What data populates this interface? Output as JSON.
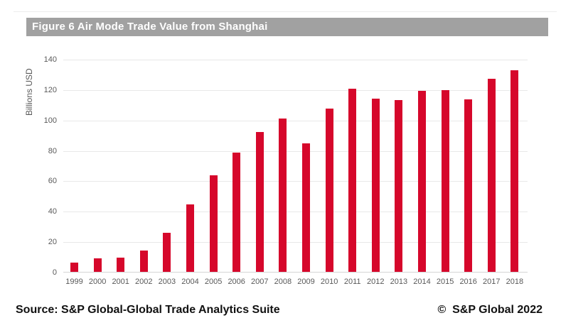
{
  "figure": {
    "title": "Figure 6 Air Mode Trade Value from Shanghai"
  },
  "chart_data": {
    "type": "bar",
    "title": "Figure 6 Air Mode Trade Value from Shanghai",
    "categories": [
      "1999",
      "2000",
      "2001",
      "2002",
      "2003",
      "2004",
      "2005",
      "2006",
      "2007",
      "2008",
      "2009",
      "2010",
      "2011",
      "2012",
      "2013",
      "2014",
      "2015",
      "2016",
      "2017",
      "2018"
    ],
    "values": [
      6.5,
      9.5,
      10,
      14.5,
      26,
      45,
      64,
      79,
      92.5,
      101.5,
      85,
      108,
      121,
      114.5,
      113.5,
      119.5,
      120,
      114,
      127.5,
      133
    ],
    "xlabel": "",
    "ylabel": "Billions USD",
    "ylim": [
      0,
      140
    ],
    "yticks": [
      0,
      20,
      40,
      60,
      80,
      100,
      120,
      140
    ],
    "grid": true,
    "legend": "none",
    "bar_color": "#D6072B"
  },
  "footer": {
    "source": "Source: S&P Global-Global Trade Analytics Suite",
    "copyright": "©  S&P Global 2022"
  },
  "colors": {
    "bar": "#D6072B",
    "title_bar_bg": "#A1A1A1",
    "title_text": "#FFFFFF",
    "axis_text": "#595959",
    "gridline": "#E8E8E8",
    "axis_line": "#D4D4D4",
    "background": "#FFFFFF"
  }
}
